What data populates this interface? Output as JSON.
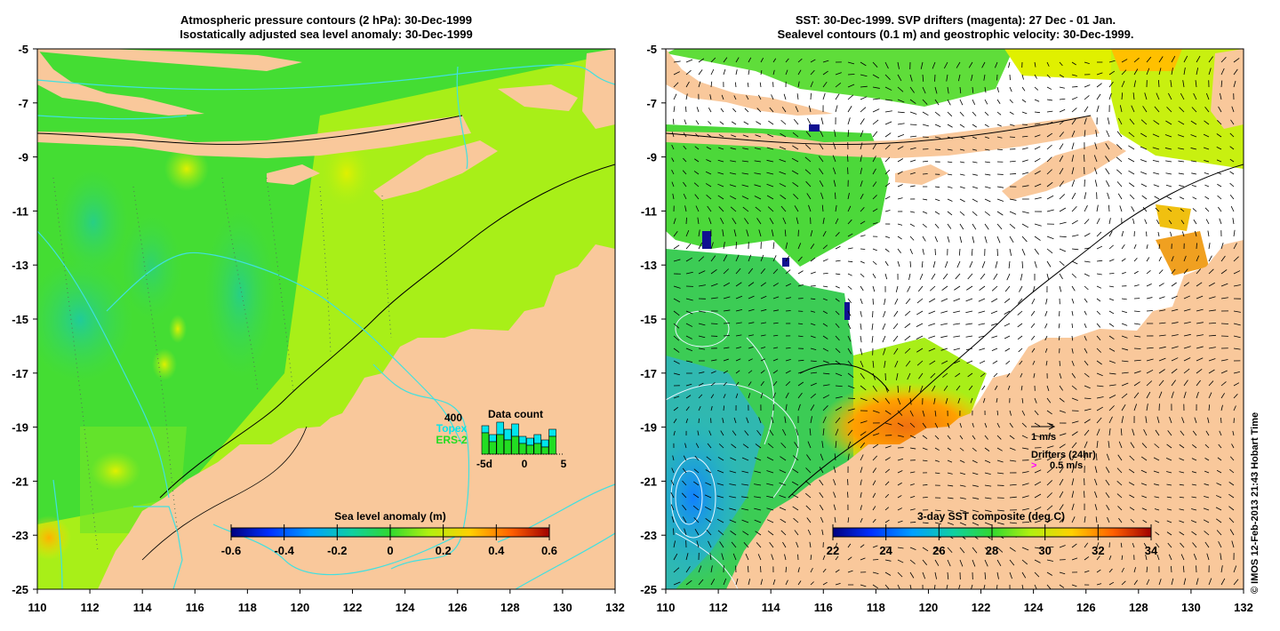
{
  "left_panel": {
    "title_line1": "Atmospheric pressure contours (2 hPa): 30-Dec-1999",
    "title_line2": "Isostatically adjusted sea level anomaly: 30-Dec-1999",
    "x_ticks": [
      "110",
      "112",
      "114",
      "116",
      "118",
      "120",
      "122",
      "124",
      "126",
      "128",
      "130",
      "132"
    ],
    "y_ticks": [
      "-5",
      "-7",
      "-9",
      "-11",
      "-13",
      "-15",
      "-17",
      "-19",
      "-21",
      "-23",
      "-25"
    ],
    "colorbar": {
      "title": "Sea level anomaly (m)",
      "labels": [
        "-0.6",
        "-0.4",
        "-0.2",
        "0",
        "0.2",
        "0.4",
        "0.6"
      ],
      "range": [
        -0.6,
        0.6
      ]
    },
    "data_count": {
      "title": "Data count",
      "max_label": "400",
      "series_topex": "Topex",
      "series_ers": "ERS-2",
      "axis_labels": [
        "-5d",
        "0",
        "5"
      ],
      "topex_color": "#00e5ee",
      "ers_color": "#22dd22"
    }
  },
  "right_panel": {
    "title_line1": "SST: 30-Dec-1999. SVP drifters (magenta): 27 Dec - 01 Jan.",
    "title_line2": "Sealevel contours (0.1 m) and geostrophic velocity: 30-Dec-1999.",
    "x_ticks": [
      "110",
      "112",
      "114",
      "116",
      "118",
      "120",
      "122",
      "124",
      "126",
      "128",
      "130",
      "132"
    ],
    "y_ticks": [
      "-5",
      "-7",
      "-9",
      "-11",
      "-13",
      "-15",
      "-17",
      "-19",
      "-21",
      "-23",
      "-25"
    ],
    "colorbar": {
      "title": "3-day SST composite (deg C)",
      "labels": [
        "22",
        "24",
        "26",
        "28",
        "30",
        "32",
        "34"
      ],
      "range": [
        22,
        34
      ]
    },
    "velocity_scale": "1 m/s",
    "drifters_title": "Drifters (24hr)",
    "drifters_scale": "0.5 m/s",
    "drifter_color": "#ff00ff"
  },
  "credit": "© IMOS 12-Feb-2013 21:43 Hobart Time",
  "colors": {
    "land": "#f9c89b",
    "sea_green": "#44e033",
    "sea_yellowgreen": "#b8f513",
    "sea_teal": "#20cc88",
    "contour_cyan": "#40e0e0"
  }
}
